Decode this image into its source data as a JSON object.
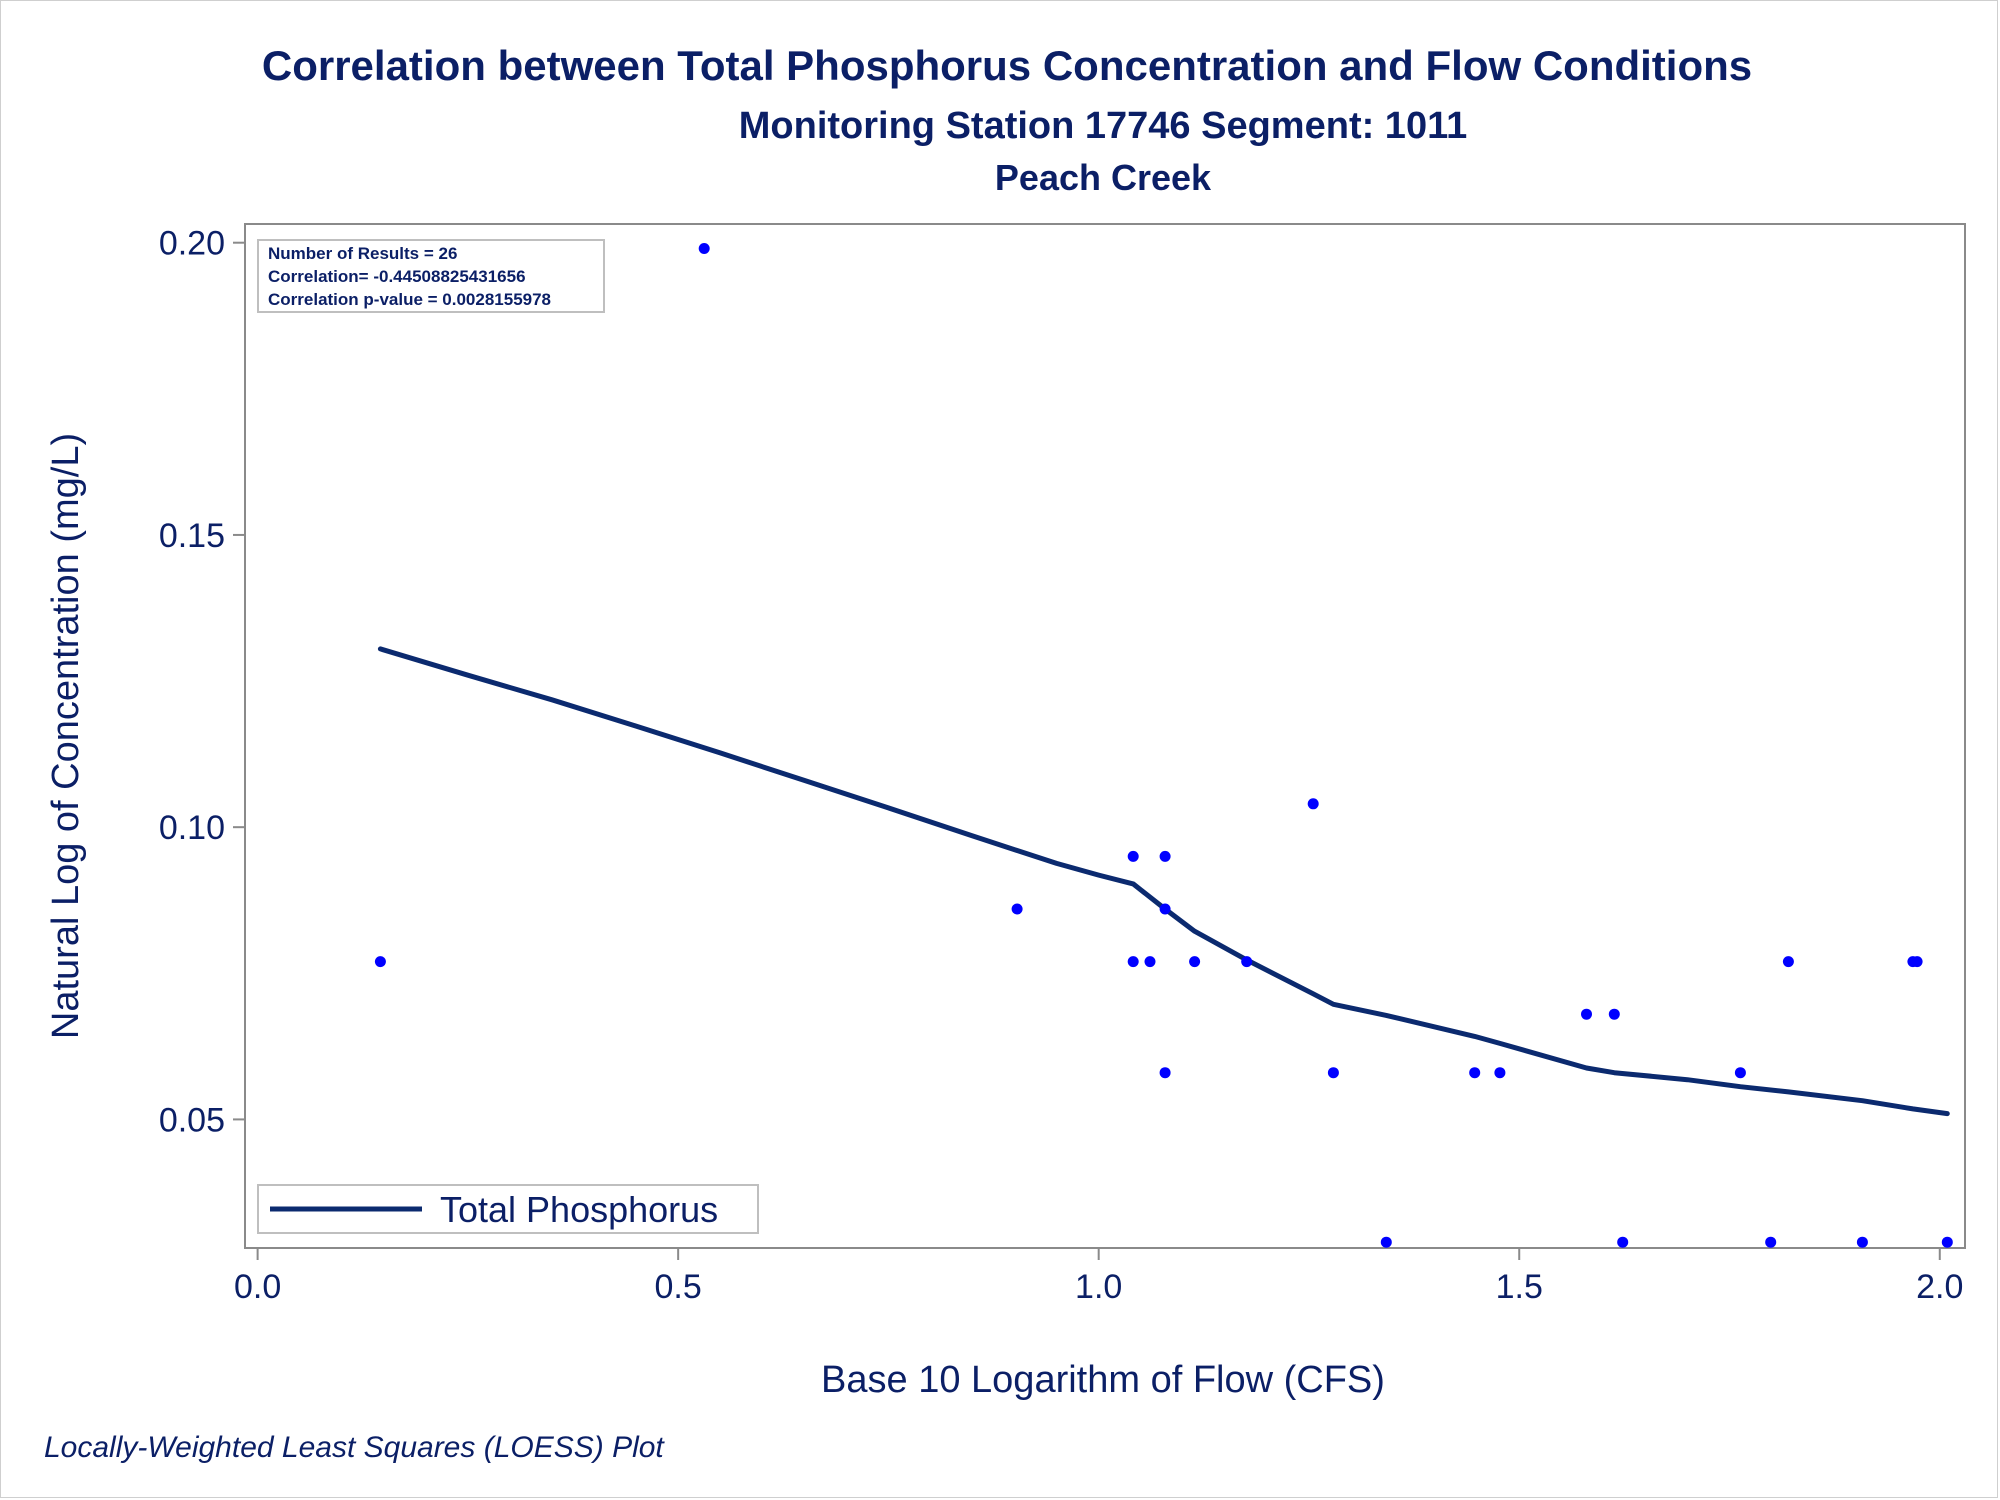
{
  "footnote": "Locally-Weighted Least Squares (LOESS) Plot",
  "colors": {
    "text": "#0b1f66",
    "points": "#0000ff",
    "line": "#0b2a6f",
    "axis": "#8a8a8a"
  },
  "chart_data": {
    "type": "scatter",
    "title": "Correlation between Total Phosphorus Concentration and Flow Conditions",
    "subtitle": "Monitoring Station 17746 Segment: 1011",
    "subtitle2": "Peach Creek",
    "xlabel": "Base 10 Logarithm of Flow (CFS)",
    "ylabel": "Natural Log of Concentration (mg/L)",
    "xlim": [
      -0.015,
      2.03
    ],
    "ylim": [
      0.028,
      0.2032
    ],
    "xticks": [
      0.0,
      0.5,
      1.0,
      1.5,
      2.0
    ],
    "xtick_labels": [
      "0.0",
      "0.5",
      "1.0",
      "1.5",
      "2.0"
    ],
    "yticks": [
      0.05,
      0.1,
      0.15,
      0.2
    ],
    "ytick_labels": [
      "0.05",
      "0.10",
      "0.15",
      "0.20"
    ],
    "grid": false,
    "legend": {
      "position": "bottom-left",
      "entries": [
        "Total Phosphorus"
      ]
    },
    "stats": [
      "Number of Results = 26",
      "Correlation= -0.44508825431656",
      "Correlation p-value = 0.0028155978"
    ],
    "points": [
      {
        "x": 0.146,
        "y": 0.077
      },
      {
        "x": 0.531,
        "y": 0.199
      },
      {
        "x": 0.903,
        "y": 0.086
      },
      {
        "x": 1.041,
        "y": 0.095
      },
      {
        "x": 1.041,
        "y": 0.077
      },
      {
        "x": 1.061,
        "y": 0.077
      },
      {
        "x": 1.079,
        "y": 0.095
      },
      {
        "x": 1.079,
        "y": 0.086
      },
      {
        "x": 1.079,
        "y": 0.058
      },
      {
        "x": 1.114,
        "y": 0.077
      },
      {
        "x": 1.176,
        "y": 0.077
      },
      {
        "x": 1.255,
        "y": 0.104
      },
      {
        "x": 1.279,
        "y": 0.058
      },
      {
        "x": 1.342,
        "y": 0.029
      },
      {
        "x": 1.447,
        "y": 0.058
      },
      {
        "x": 1.477,
        "y": 0.058
      },
      {
        "x": 1.58,
        "y": 0.068
      },
      {
        "x": 1.613,
        "y": 0.068
      },
      {
        "x": 1.623,
        "y": 0.029
      },
      {
        "x": 1.763,
        "y": 0.058
      },
      {
        "x": 1.799,
        "y": 0.029
      },
      {
        "x": 1.82,
        "y": 0.077
      },
      {
        "x": 1.908,
        "y": 0.029
      },
      {
        "x": 1.968,
        "y": 0.077
      },
      {
        "x": 1.973,
        "y": 0.077
      },
      {
        "x": 2.009,
        "y": 0.029
      }
    ],
    "series": [
      {
        "name": "Total Phosphorus",
        "type": "line",
        "x": [
          0.146,
          0.25,
          0.35,
          0.45,
          0.55,
          0.65,
          0.75,
          0.85,
          0.95,
          1.0,
          1.041,
          1.079,
          1.114,
          1.176,
          1.255,
          1.279,
          1.342,
          1.447,
          1.477,
          1.58,
          1.613,
          1.7,
          1.763,
          1.82,
          1.908,
          1.968,
          2.009
        ],
        "y": [
          0.1305,
          0.126,
          0.1218,
          0.1173,
          0.1127,
          0.108,
          0.1033,
          0.0985,
          0.0938,
          0.0918,
          0.0903,
          0.086,
          0.0822,
          0.0773,
          0.0715,
          0.0697,
          0.0678,
          0.0642,
          0.063,
          0.0588,
          0.058,
          0.0568,
          0.0556,
          0.0547,
          0.0532,
          0.0518,
          0.051
        ]
      }
    ]
  }
}
